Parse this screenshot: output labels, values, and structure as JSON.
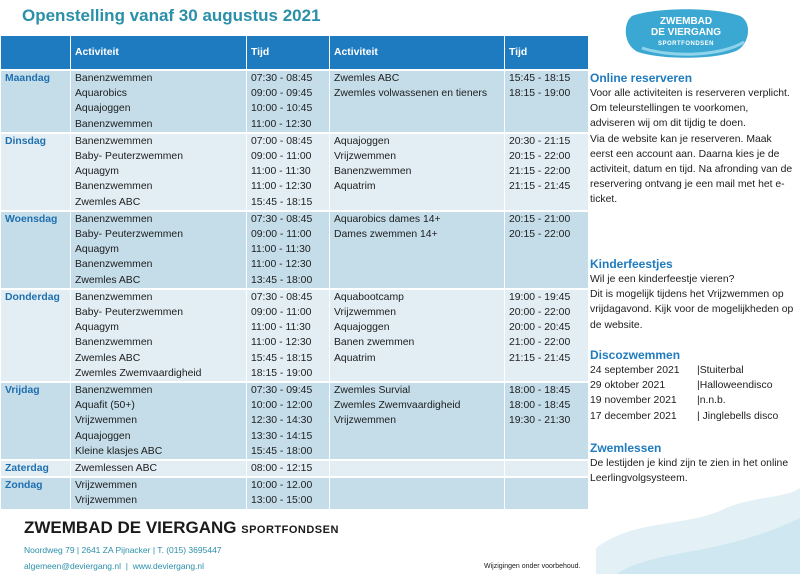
{
  "title": "Openstelling vanaf 30 augustus 2021",
  "logo": {
    "line1": "ZWEMBAD",
    "line2": "DE VIERGANG",
    "line3": "SPORTFONDSEN"
  },
  "headers": [
    "",
    "Activiteit",
    "Tijd",
    "Activiteit",
    "Tijd"
  ],
  "days": [
    {
      "name": "Maandag",
      "a1": [
        "Banenzwemmen",
        "Aquarobics",
        "Aquajoggen",
        "Banenzwemmen"
      ],
      "t1": [
        "07:30 - 08:45",
        "09:00 - 09:45",
        "10:00 - 10:45",
        "11:00 - 12:30"
      ],
      "a2": [
        "Zwemles ABC",
        "Zwemles volwassenen en tieners"
      ],
      "t2": [
        "15:45 - 18:15",
        "18:15 - 19:00"
      ]
    },
    {
      "name": "Dinsdag",
      "a1": [
        "Banenzwemmen",
        "Baby- Peuterzwemmen",
        "Aquagym",
        "Banenzwemmen",
        "Zwemles ABC"
      ],
      "t1": [
        "07:00 - 08:45",
        "09:00 - 11:00",
        "11:00 - 11:30",
        "11:00 - 12:30",
        "15:45 - 18:15"
      ],
      "a2": [
        "Aquajoggen",
        "Vrijzwemmen",
        "Banenzwemmen",
        "Aquatrim"
      ],
      "t2": [
        "20:30 - 21:15",
        "20:15 - 22:00",
        "21:15 - 22:00",
        "21:15 - 21:45"
      ]
    },
    {
      "name": "Woensdag",
      "a1": [
        "Banenzwemmen",
        "Baby- Peuterzwemmen",
        "Aquagym",
        "Banenzwemmen",
        "Zwemles ABC"
      ],
      "t1": [
        "07:30 - 08:45",
        "09:00 - 11:00",
        "11:00 - 11:30",
        "11:00 - 12:30",
        "13:45 - 18:00"
      ],
      "a2": [
        "Aquarobics dames 14+",
        "Dames zwemmen 14+"
      ],
      "t2": [
        "20:15 - 21:00",
        "20:15 - 22:00"
      ]
    },
    {
      "name": "Donderdag",
      "a1": [
        "Banenzwemmen",
        "Baby- Peuterzwemmen",
        "Aquagym",
        "Banenzwemmen",
        "Zwemles ABC",
        "Zwemles Zwemvaardigheid"
      ],
      "t1": [
        "07:30 - 08:45",
        "09:00 - 11:00",
        "11:00 - 11:30",
        "11:00 - 12:30",
        "15:45 - 18:15",
        "18:15 - 19:00"
      ],
      "a2": [
        "Aquabootcamp",
        "Vrijzwemmen",
        "Aquajoggen",
        "Banen zwemmen",
        "Aquatrim"
      ],
      "t2": [
        "19:00 - 19:45",
        "20:00 - 22:00",
        "20:00 - 20:45",
        "21:00 - 22:00",
        "21:15 - 21:45"
      ]
    },
    {
      "name": "Vrijdag",
      "a1": [
        "Banenzwemmen",
        "Aquafit (50+)",
        "Vrijzwemmen",
        "Aquajoggen",
        "Kleine klasjes ABC"
      ],
      "t1": [
        "07:30 - 09:45",
        "10:00 - 12:00",
        "12:30 - 14:30",
        "13:30 - 14:15",
        "15:45 - 18:00"
      ],
      "a2": [
        "Zwemles Survial",
        "Zwemles Zwemvaardigheid",
        "Vrijzwemmen"
      ],
      "t2": [
        "18:00 - 18:45",
        "18:00 - 18:45",
        "19:30 - 21:30"
      ]
    },
    {
      "name": "Zaterdag",
      "a1": [
        "Zwemlessen ABC"
      ],
      "t1": [
        "08:00 - 12:15"
      ],
      "a2": [],
      "t2": []
    },
    {
      "name": "Zondag",
      "a1": [
        "Vrijzwemmen",
        "Vrijzwemmen"
      ],
      "t1": [
        "10:00 - 12.00",
        "13:00 - 15:00"
      ],
      "a2": [],
      "t2": []
    }
  ],
  "online": {
    "heading": "Online reserveren",
    "p1": "Voor alle activiteiten is reserveren verplicht. Om teleurstellingen te voorkomen, adviseren wij om dit tijdig te doen.",
    "p2": "Via de website kan je reserveren. Maak eerst een account aan. Daarna kies je de activiteit, datum en tijd. Na afronding van de reservering ontvang je een mail met het e-ticket."
  },
  "kinder": {
    "heading": "Kinderfeestjes",
    "p1": "Wil je een kinderfeestje vieren?",
    "p2": "Dit is mogelijk tijdens het Vrijzwemmen op vrijdagavond. Kijk voor de mogelijkheden op de website."
  },
  "disco": {
    "heading": "Discozwemmen",
    "rows": [
      {
        "date": "24 september 2021",
        "name": "|Stuiterbal"
      },
      {
        "date": "29 oktober 2021",
        "name": "|Halloweendisco"
      },
      {
        "date": "19 november 2021",
        "name": "|n.n.b."
      },
      {
        "date": "17 december 2021",
        "name": "| Jinglebells disco"
      }
    ]
  },
  "zwemlessen": {
    "heading": "Zwemlessen",
    "p1": "De lestijden je kind zijn te zien in het online Leerlingvolgsysteem."
  },
  "footer": {
    "name": "ZWEMBAD DE VIERGANG",
    "sub": "SPORTFONDSEN",
    "address": "Noordweg 79 | 2641 ZA Pijnacker | T. (015) 3695447",
    "email": "algemeen@deviergang.nl",
    "sep": "|",
    "web": "www.deviergang.nl",
    "note": "Wijzigingen onder voorbehoud."
  },
  "colors": {
    "accent": "#1f7bbf",
    "title": "#2a8fa8",
    "row_dark": "#c4dde9",
    "row_light": "#e2eef4"
  }
}
